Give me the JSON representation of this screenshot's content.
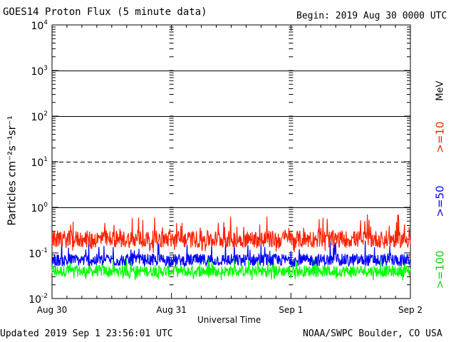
{
  "header": {
    "title": "GOES14 Proton Flux (5 minute data)",
    "begin": "Begin: 2019 Aug 30 0000 UTC"
  },
  "footer": {
    "updated": "Updated 2019 Sep  1 23:56:01 UTC",
    "source": "NOAA/SWPC Boulder, CO USA"
  },
  "chart_data": {
    "type": "line",
    "xlabel": "Universal Time",
    "ylabel": "Particles cm⁻²s⁻¹sr⁻¹",
    "y_scale": "log",
    "ylim": [
      0.01,
      10000
    ],
    "yticks": [
      {
        "base": "10",
        "exp": "4"
      },
      {
        "base": "10",
        "exp": "3"
      },
      {
        "base": "10",
        "exp": "2"
      },
      {
        "base": "10",
        "exp": "1"
      },
      {
        "base": "10",
        "exp": "0"
      },
      {
        "base": "10",
        "exp": "-1"
      },
      {
        "base": "10",
        "exp": "-2"
      }
    ],
    "x_tick_labels": [
      "Aug 30",
      "Aug 31",
      "Sep 1",
      "Sep 2"
    ],
    "xlim": [
      "2019-08-30 00:00",
      "2019-09-02 00:00"
    ],
    "threshold_lines": [
      {
        "value": 10,
        "style": "dashed"
      },
      {
        "value": 1,
        "style": "solid"
      },
      {
        "value": 100,
        "style": "solid"
      },
      {
        "value": 1000,
        "style": "solid"
      }
    ],
    "energy_unit": "MeV",
    "series": [
      {
        "name": ">=10",
        "color": "#ff2000",
        "typical": 0.2,
        "min": 0.1,
        "max": 0.7
      },
      {
        "name": ">=50",
        "color": "#0000ff",
        "typical": 0.07,
        "min": 0.05,
        "max": 0.2
      },
      {
        "name": ">=100",
        "color": "#00ff00",
        "typical": 0.04,
        "min": 0.025,
        "max": 0.09
      }
    ]
  }
}
